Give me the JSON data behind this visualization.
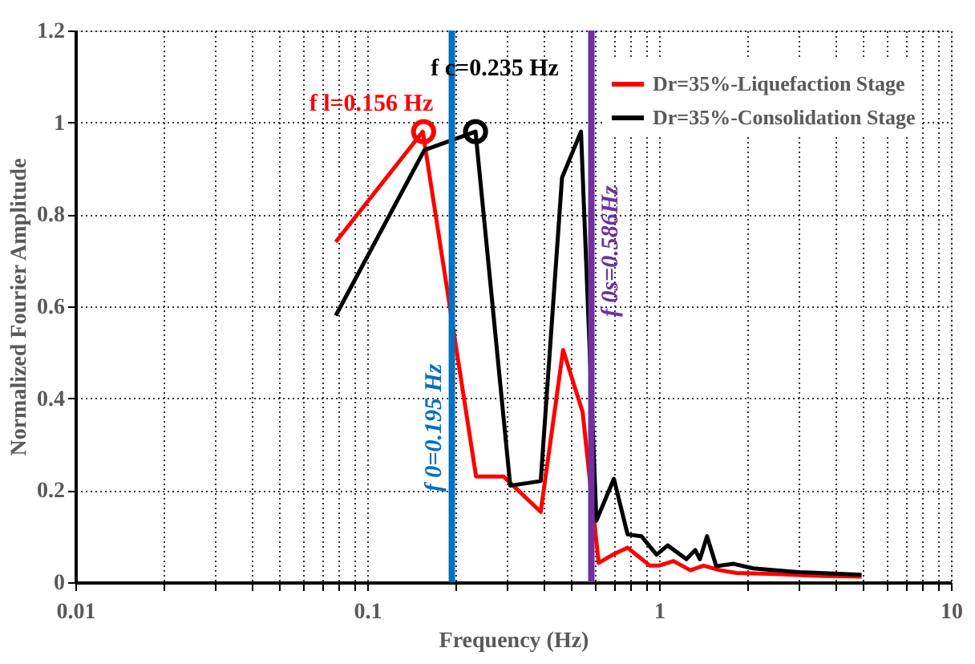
{
  "chart_data": {
    "type": "line",
    "xlabel": "Frequency (Hz)",
    "ylabel": "Normalized Fourier Amplitude",
    "xlim": [
      0.01,
      10
    ],
    "ylim": [
      0,
      1.2
    ],
    "xticks": [
      0.01,
      {
        "value": 0.02,
        "label": null
      },
      {
        "value": 0.03,
        "label": null
      },
      {
        "value": 0.04,
        "label": null
      },
      {
        "value": 0.05,
        "label": null
      },
      {
        "value": 0.06,
        "label": null
      },
      {
        "value": 0.07,
        "label": null
      },
      {
        "value": 0.08,
        "label": null
      },
      {
        "value": 0.09,
        "label": null
      },
      0.1,
      {
        "value": 0.2,
        "label": null
      },
      {
        "value": 0.3,
        "label": null
      },
      {
        "value": 0.4,
        "label": null
      },
      {
        "value": 0.5,
        "label": null
      },
      {
        "value": 0.6,
        "label": null
      },
      {
        "value": 0.7,
        "label": null
      },
      {
        "value": 0.8,
        "label": null
      },
      {
        "value": 0.9,
        "label": null
      },
      1,
      {
        "value": 2,
        "label": null
      },
      {
        "value": 3,
        "label": null
      },
      {
        "value": 4,
        "label": null
      },
      {
        "value": 5,
        "label": null
      },
      {
        "value": 6,
        "label": null
      },
      {
        "value": 7,
        "label": null
      },
      {
        "value": 8,
        "label": null
      },
      {
        "value": 9,
        "label": null
      },
      10
    ],
    "yticks": [
      0,
      0.2,
      0.4,
      0.6,
      0.8,
      1,
      1.2
    ],
    "log": "x",
    "grid": true,
    "legend": "top right",
    "marker": "none",
    "line_style": "solid",
    "series": [
      {
        "name": "Dr=35%-Liquefaction Stage",
        "color": "#ff0000",
        "x": [
          0.078,
          0.155,
          0.236,
          0.293,
          0.393,
          0.469,
          0.547,
          0.621,
          0.695,
          0.78,
          0.93,
          1.0,
          1.12,
          1.28,
          1.42,
          1.62,
          1.84,
          2.5,
          3.5,
          4.94
        ],
        "values": [
          0.74,
          0.98,
          0.23,
          0.23,
          0.153,
          0.505,
          0.37,
          0.042,
          0.06,
          0.075,
          0.036,
          0.036,
          0.046,
          0.026,
          0.036,
          0.026,
          0.02,
          0.018,
          0.014,
          0.012
        ]
      },
      {
        "name": "Dr=35%-Consolidation Stage",
        "color": "#000000",
        "x": [
          0.078,
          0.157,
          0.235,
          0.309,
          0.393,
          0.465,
          0.54,
          0.61,
          0.7,
          0.78,
          0.87,
          0.98,
          1.07,
          1.24,
          1.33,
          1.38,
          1.46,
          1.57,
          1.8,
          2.1,
          3.0,
          4.94
        ],
        "values": [
          0.58,
          0.94,
          0.98,
          0.21,
          0.22,
          0.88,
          0.98,
          0.134,
          0.225,
          0.104,
          0.1,
          0.06,
          0.08,
          0.05,
          0.07,
          0.05,
          0.1,
          0.035,
          0.04,
          0.03,
          0.022,
          0.016
        ]
      }
    ],
    "ref_lines": [
      {
        "axis": "x",
        "value": 0.195,
        "label": "f 0=0.195 Hz",
        "color": "#0070c0"
      },
      {
        "axis": "x",
        "value": 0.586,
        "label": "f 0s=0.586Hz",
        "color": "#7030a0"
      }
    ],
    "annotations": [
      {
        "text": "f l=0.156 Hz",
        "x": 0.156,
        "y": 0.98
      },
      {
        "text": "f c=0.235 Hz",
        "x": 0.235,
        "y": 0.98
      }
    ]
  }
}
